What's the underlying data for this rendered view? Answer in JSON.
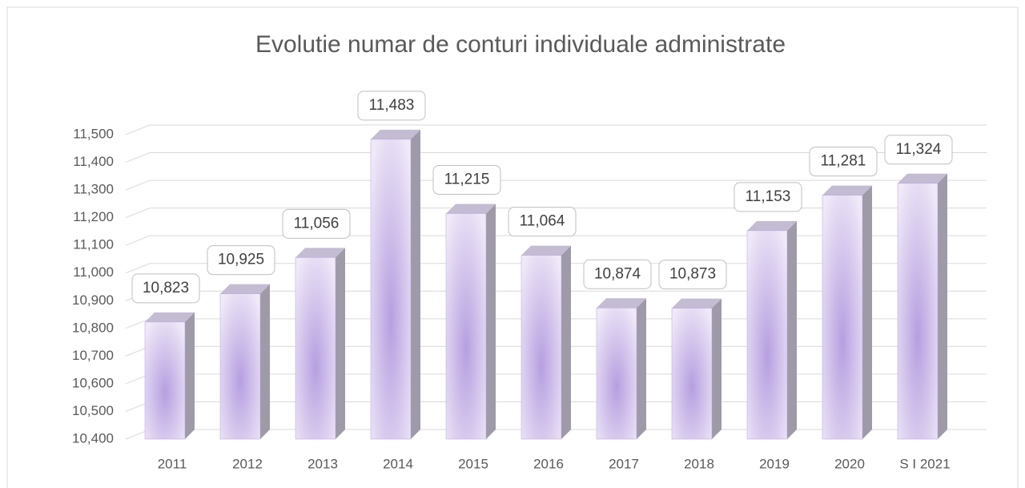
{
  "chart_data": {
    "type": "bar3d",
    "title": "Evolutie numar de  conturi individuale administrate",
    "categories": [
      "2011",
      "2012",
      "2013",
      "2014",
      "2015",
      "2016",
      "2017",
      "2018",
      "2019",
      "2020",
      "S I 2021"
    ],
    "values": [
      10823,
      10925,
      11056,
      11483,
      11215,
      11064,
      10874,
      10873,
      11153,
      11281,
      11324
    ],
    "value_labels": [
      "10,823",
      "10,925",
      "11,056",
      "11,483",
      "11,215",
      "11,064",
      "10,874",
      "10,873",
      "11,153",
      "11,281",
      "11,324"
    ],
    "color": "#b79fe0",
    "ylim": [
      10400,
      11500
    ],
    "yticks": [
      {
        "value": 10400,
        "label": "10,400"
      },
      {
        "value": 10500,
        "label": "10,500"
      },
      {
        "value": 10600,
        "label": "10,600"
      },
      {
        "value": 10700,
        "label": "10,700"
      },
      {
        "value": 10800,
        "label": "10,800"
      },
      {
        "value": 10900,
        "label": "10,900"
      },
      {
        "value": 11000,
        "label": "11,000"
      },
      {
        "value": 11100,
        "label": "11,100"
      },
      {
        "value": 11200,
        "label": "11,200"
      },
      {
        "value": 11300,
        "label": "11,300"
      },
      {
        "value": 11400,
        "label": "11,400"
      },
      {
        "value": 11500,
        "label": "11,500"
      }
    ],
    "grid": true
  }
}
